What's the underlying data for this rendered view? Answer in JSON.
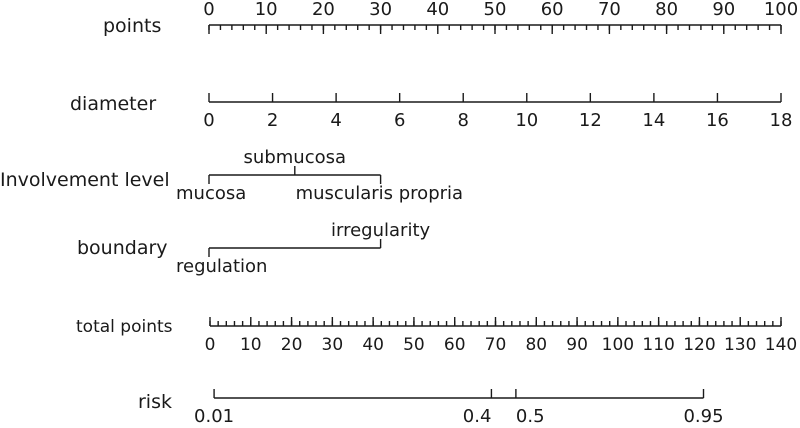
{
  "chart_data": {
    "type": "nomogram",
    "rows": [
      {
        "key": "points",
        "label": "points",
        "scale": "linear",
        "range": [
          0,
          100
        ],
        "tick_values": [
          0,
          10,
          20,
          30,
          40,
          50,
          60,
          70,
          80,
          90,
          100
        ],
        "tick_labels": [
          "0",
          "10",
          "20",
          "30",
          "40",
          "50",
          "60",
          "70",
          "80",
          "90",
          "100"
        ],
        "minor_step": 2,
        "labels_above": true
      },
      {
        "key": "diameter",
        "label": "diameter",
        "scale": "linear",
        "range": [
          0,
          18
        ],
        "points_range": [
          0,
          100
        ],
        "tick_values": [
          0,
          2,
          4,
          6,
          8,
          10,
          12,
          14,
          16,
          18
        ],
        "tick_labels": [
          "0",
          "2",
          "4",
          "6",
          "8",
          "10",
          "12",
          "14",
          "16",
          "18"
        ],
        "labels_above": false
      },
      {
        "key": "involvement_level",
        "label": "Involvement level",
        "scale": "categorical",
        "categories": [
          {
            "name": "mucosa",
            "points": 0,
            "label_side": "below"
          },
          {
            "name": "submucosa",
            "points": 15,
            "label_side": "above"
          },
          {
            "name": "muscularis propria",
            "points": 30,
            "label_side": "below"
          }
        ]
      },
      {
        "key": "boundary",
        "label": "boundary",
        "scale": "categorical",
        "categories": [
          {
            "name": "regulation",
            "points": 0,
            "label_side": "below"
          },
          {
            "name": "irregularity",
            "points": 30,
            "label_side": "above"
          }
        ]
      },
      {
        "key": "total_points",
        "label": "total points",
        "scale": "linear",
        "range": [
          0,
          140
        ],
        "tick_values": [
          0,
          10,
          20,
          30,
          40,
          50,
          60,
          70,
          80,
          90,
          100,
          110,
          120,
          130,
          140
        ],
        "tick_labels": [
          "0",
          "10",
          "20",
          "30",
          "40",
          "50",
          "60",
          "70",
          "80",
          "90",
          "100",
          "110",
          "120",
          "130",
          "140"
        ],
        "minor_step": 2,
        "labels_above": false
      },
      {
        "key": "risk",
        "label": "risk",
        "scale": "custom",
        "tick_values": [
          0.01,
          0.4,
          0.5,
          0.95
        ],
        "tick_labels": [
          "0.01",
          "0.4",
          "0.5",
          "0.95"
        ],
        "total_points_at_ticks": [
          1,
          69,
          75,
          121
        ],
        "labels_above": false
      }
    ]
  }
}
